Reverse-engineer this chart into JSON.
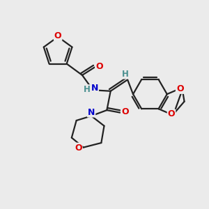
{
  "bg_color": "#ebebeb",
  "bond_color": "#222222",
  "O_color": "#dd0000",
  "N_color": "#0000cc",
  "H_color": "#4a9090",
  "lw": 1.6,
  "figsize": [
    3.0,
    3.0
  ],
  "dpi": 100,
  "xlim": [
    0,
    10
  ],
  "ylim": [
    0,
    10
  ]
}
